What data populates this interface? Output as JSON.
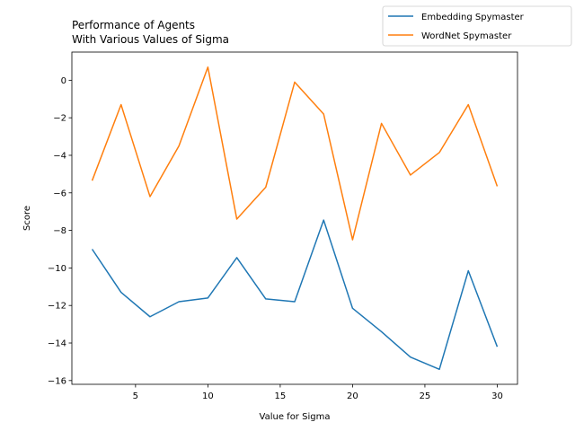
{
  "chart_data": {
    "type": "line",
    "title": "Performance of Agents\nWith Various Values of Sigma",
    "xlabel": "Value for Sigma",
    "ylabel": "Score",
    "xlim": [
      0.6,
      31.4
    ],
    "ylim": [
      -16.2,
      1.5
    ],
    "xticks": [
      5,
      10,
      15,
      20,
      25,
      30
    ],
    "yticks": [
      0,
      -2,
      -4,
      -6,
      -8,
      -10,
      -12,
      -14,
      -16
    ],
    "grid": false,
    "legend_position": "top-right (outside axes)",
    "x": [
      2,
      4,
      6,
      8,
      10,
      12,
      14,
      16,
      18,
      20,
      22,
      24,
      26,
      28,
      30
    ],
    "series": [
      {
        "name": "Embedding Spymaster",
        "color": "#1f77b4",
        "values": [
          -9.0,
          -11.3,
          -12.6,
          -11.8,
          -11.6,
          -9.45,
          -11.65,
          -11.8,
          -7.45,
          -12.15,
          -13.4,
          -14.75,
          -15.4,
          -10.15,
          -14.2
        ]
      },
      {
        "name": "WordNet Spymaster",
        "color": "#ff7f0e",
        "values": [
          -5.35,
          -1.3,
          -6.2,
          -3.5,
          0.7,
          -7.4,
          -5.7,
          -0.1,
          -1.8,
          -8.5,
          -2.3,
          -5.05,
          -3.85,
          -1.3,
          -5.65
        ]
      }
    ]
  }
}
